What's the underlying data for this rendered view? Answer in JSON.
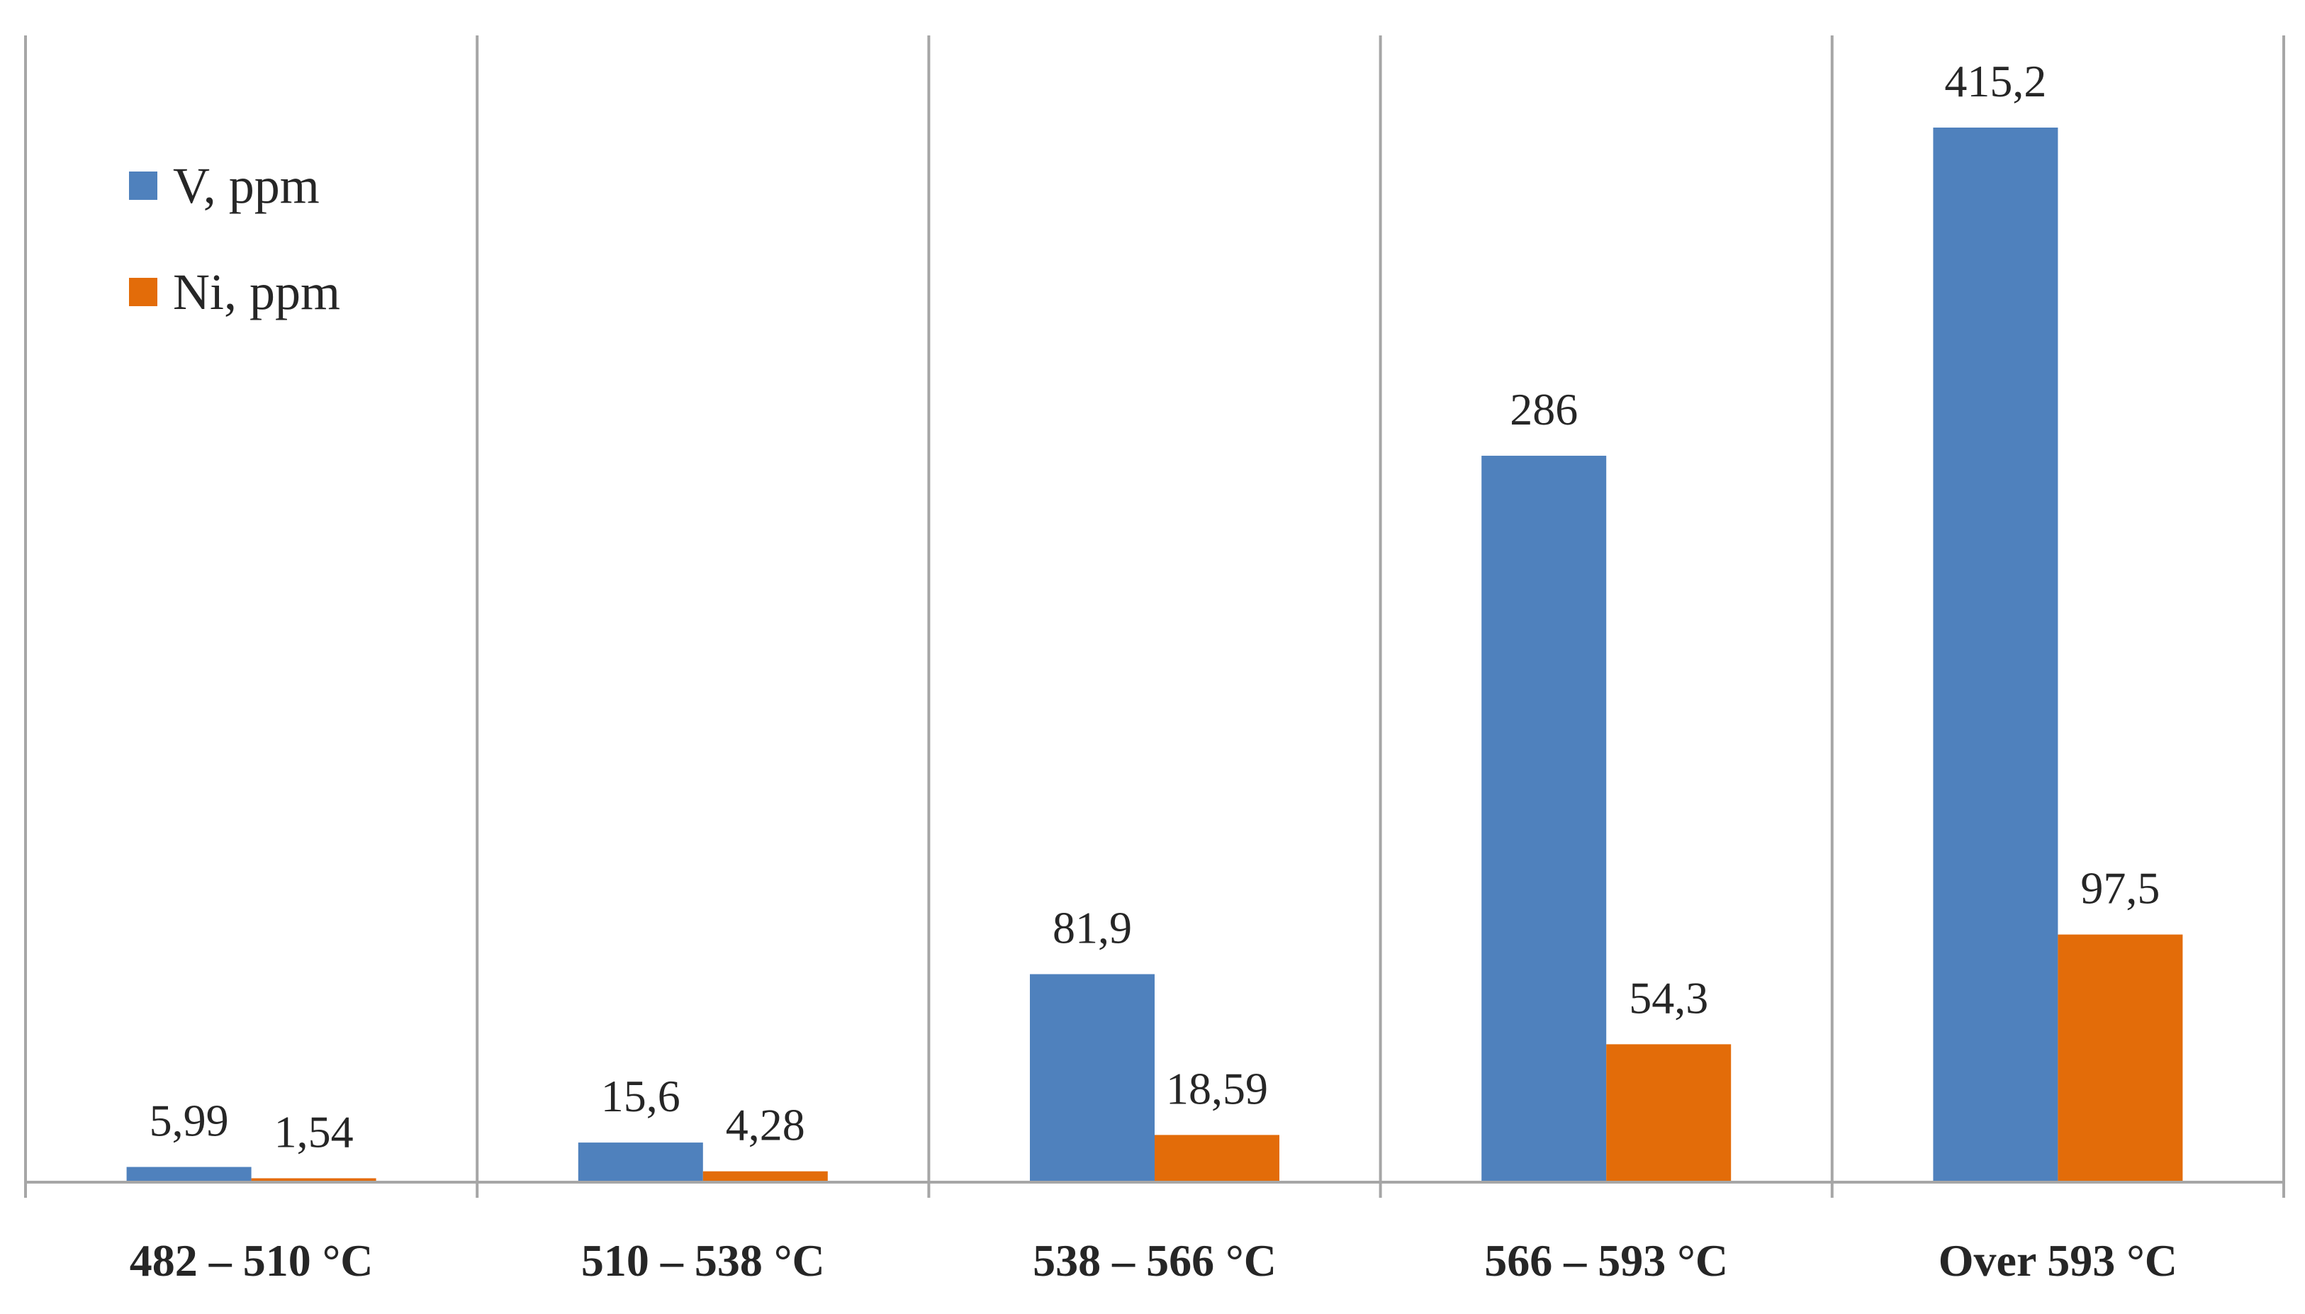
{
  "chart_data": {
    "type": "bar",
    "title": "",
    "xlabel": "",
    "ylabel": "",
    "categories": [
      "482 – 510 °C",
      "510 – 538 °C",
      "538 – 566 °C",
      "566 – 593 °C",
      "Over 593 °C"
    ],
    "series": [
      {
        "name": "V, ppm",
        "color": "#4F81BD",
        "values": [
          5.99,
          15.6,
          81.9,
          286,
          415.2
        ],
        "labels": [
          "5,99",
          "15,6",
          "81,9",
          "286",
          "415,2"
        ]
      },
      {
        "name": "Ni, ppm",
        "color": "#E36C09",
        "values": [
          1.54,
          4.28,
          18.59,
          54.3,
          97.5
        ],
        "labels": [
          "1,54",
          "4,28",
          "18,59",
          "54,3",
          "97,5"
        ]
      }
    ],
    "ylim": [
      0,
      415.2
    ],
    "grid": false,
    "category_separators": true,
    "legend": {
      "position": "top-left"
    },
    "axis_color": "#A6A6A6"
  }
}
